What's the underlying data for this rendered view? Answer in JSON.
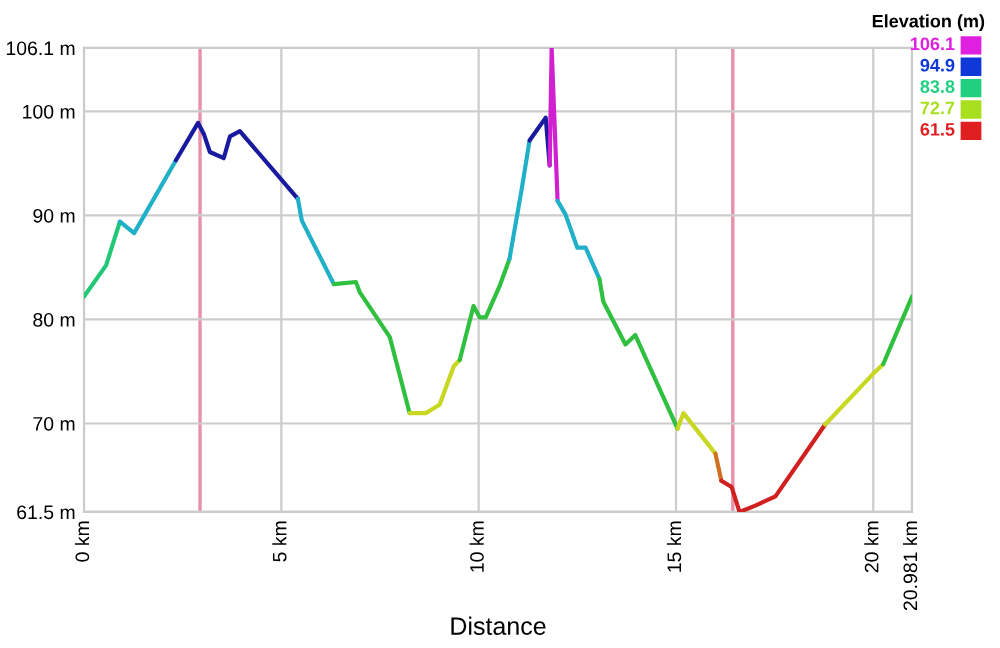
{
  "chart_data": {
    "type": "line",
    "xlabel": "Distance",
    "clabel": "Elevation (m)",
    "cticks": [
      106.1,
      94.9,
      83.8,
      72.7,
      61.5
    ],
    "colors": [
      "#e020e0",
      "#1038d8",
      "#20d080",
      "#a8e020",
      "#e02020"
    ],
    "series": [
      {
        "color": "#20c878",
        "x": [
          0,
          0.56,
          0.91
        ],
        "values": [
          82.2,
          85.2,
          89.4
        ]
      },
      {
        "color": "#20b0c8",
        "x": [
          0.91,
          1.27,
          2.33
        ],
        "values": [
          89.4,
          88.3,
          95.3
        ]
      },
      {
        "color": "#1a1aa0",
        "x": [
          2.33,
          2.89,
          3.04,
          3.19,
          3.54,
          3.7,
          3.95,
          5.42
        ],
        "values": [
          95.3,
          98.9,
          97.8,
          96.1,
          95.5,
          97.6,
          98.1,
          91.6
        ]
      },
      {
        "color": "#20b0c8",
        "x": [
          5.42,
          5.52,
          6.33
        ],
        "values": [
          91.6,
          89.5,
          83.4
        ]
      },
      {
        "color": "#30c040",
        "x": [
          6.33,
          6.89,
          6.99,
          7.75,
          8.25
        ],
        "values": [
          83.4,
          83.6,
          82.6,
          78.3,
          71.0
        ]
      },
      {
        "color": "#c8d820",
        "x": [
          8.25,
          8.66,
          9.01,
          9.37,
          9.52
        ],
        "values": [
          71.0,
          71.0,
          71.8,
          75.5,
          76.1
        ]
      },
      {
        "color": "#30c040",
        "x": [
          9.52,
          9.87,
          10.03,
          10.18,
          10.53,
          10.78
        ],
        "values": [
          76.1,
          81.3,
          80.2,
          80.2,
          83.2,
          85.8
        ]
      },
      {
        "color": "#20b0c8",
        "x": [
          10.78,
          11.09,
          11.29
        ],
        "values": [
          85.8,
          92.5,
          97.2
        ]
      },
      {
        "color": "#1a1aa0",
        "x": [
          11.29,
          11.7,
          11.8
        ],
        "values": [
          97.2,
          99.4,
          94.8
        ]
      },
      {
        "color": "#d020d0",
        "x": [
          11.8,
          11.85,
          12.0
        ],
        "values": [
          94.8,
          106.1,
          91.4
        ]
      },
      {
        "color": "#20b0c8",
        "x": [
          12.0,
          12.2,
          12.5,
          12.71,
          13.06
        ],
        "values": [
          91.4,
          90.1,
          86.9,
          86.9,
          83.9
        ]
      },
      {
        "color": "#30c040",
        "x": [
          13.06,
          13.16,
          13.72,
          13.97,
          15.04
        ],
        "values": [
          83.9,
          81.7,
          77.6,
          78.5,
          69.5
        ]
      },
      {
        "color": "#c8d820",
        "x": [
          15.04,
          15.19,
          16.0
        ],
        "values": [
          69.5,
          71.0,
          67.1
        ]
      },
      {
        "color": "#d07020",
        "x": [
          16.0,
          16.15
        ],
        "values": [
          67.1,
          64.5
        ]
      },
      {
        "color": "#d02020",
        "x": [
          16.15,
          16.41,
          16.61,
          17.01,
          17.52,
          18.78
        ],
        "values": [
          64.5,
          63.9,
          61.5,
          62.1,
          63.0,
          69.9
        ]
      },
      {
        "color": "#c8d820",
        "x": [
          18.78,
          20.0,
          20.25
        ],
        "values": [
          69.9,
          74.8,
          75.7
        ]
      },
      {
        "color": "#30c040",
        "x": [
          20.25,
          20.981
        ],
        "values": [
          75.7,
          82.2
        ]
      }
    ],
    "xlim": [
      0,
      20.981
    ],
    "xticks": [
      {
        "value": 0,
        "label": "0 km"
      },
      {
        "value": 5,
        "label": "5 km"
      },
      {
        "value": 10,
        "label": "10 km"
      },
      {
        "value": 15,
        "label": "15 km"
      },
      {
        "value": 20,
        "label": "20 km"
      },
      {
        "value": 20.981,
        "label": "20.981 km"
      }
    ],
    "ylim": [
      61.5,
      106.1
    ],
    "yticks": [
      {
        "value": 61.5,
        "label": "61.5 m"
      },
      {
        "value": 70,
        "label": "70 m"
      },
      {
        "value": 80,
        "label": "80 m"
      },
      {
        "value": 90,
        "label": "90 m"
      },
      {
        "value": 100,
        "label": "100 m"
      },
      {
        "value": 106.1,
        "label": "106.1 m"
      }
    ],
    "ref_lines": [
      {
        "axis": "x",
        "value": 2.94,
        "color": "#e890a8"
      },
      {
        "axis": "x",
        "value": 16.44,
        "color": "#e890a8"
      }
    ],
    "grid": true
  }
}
